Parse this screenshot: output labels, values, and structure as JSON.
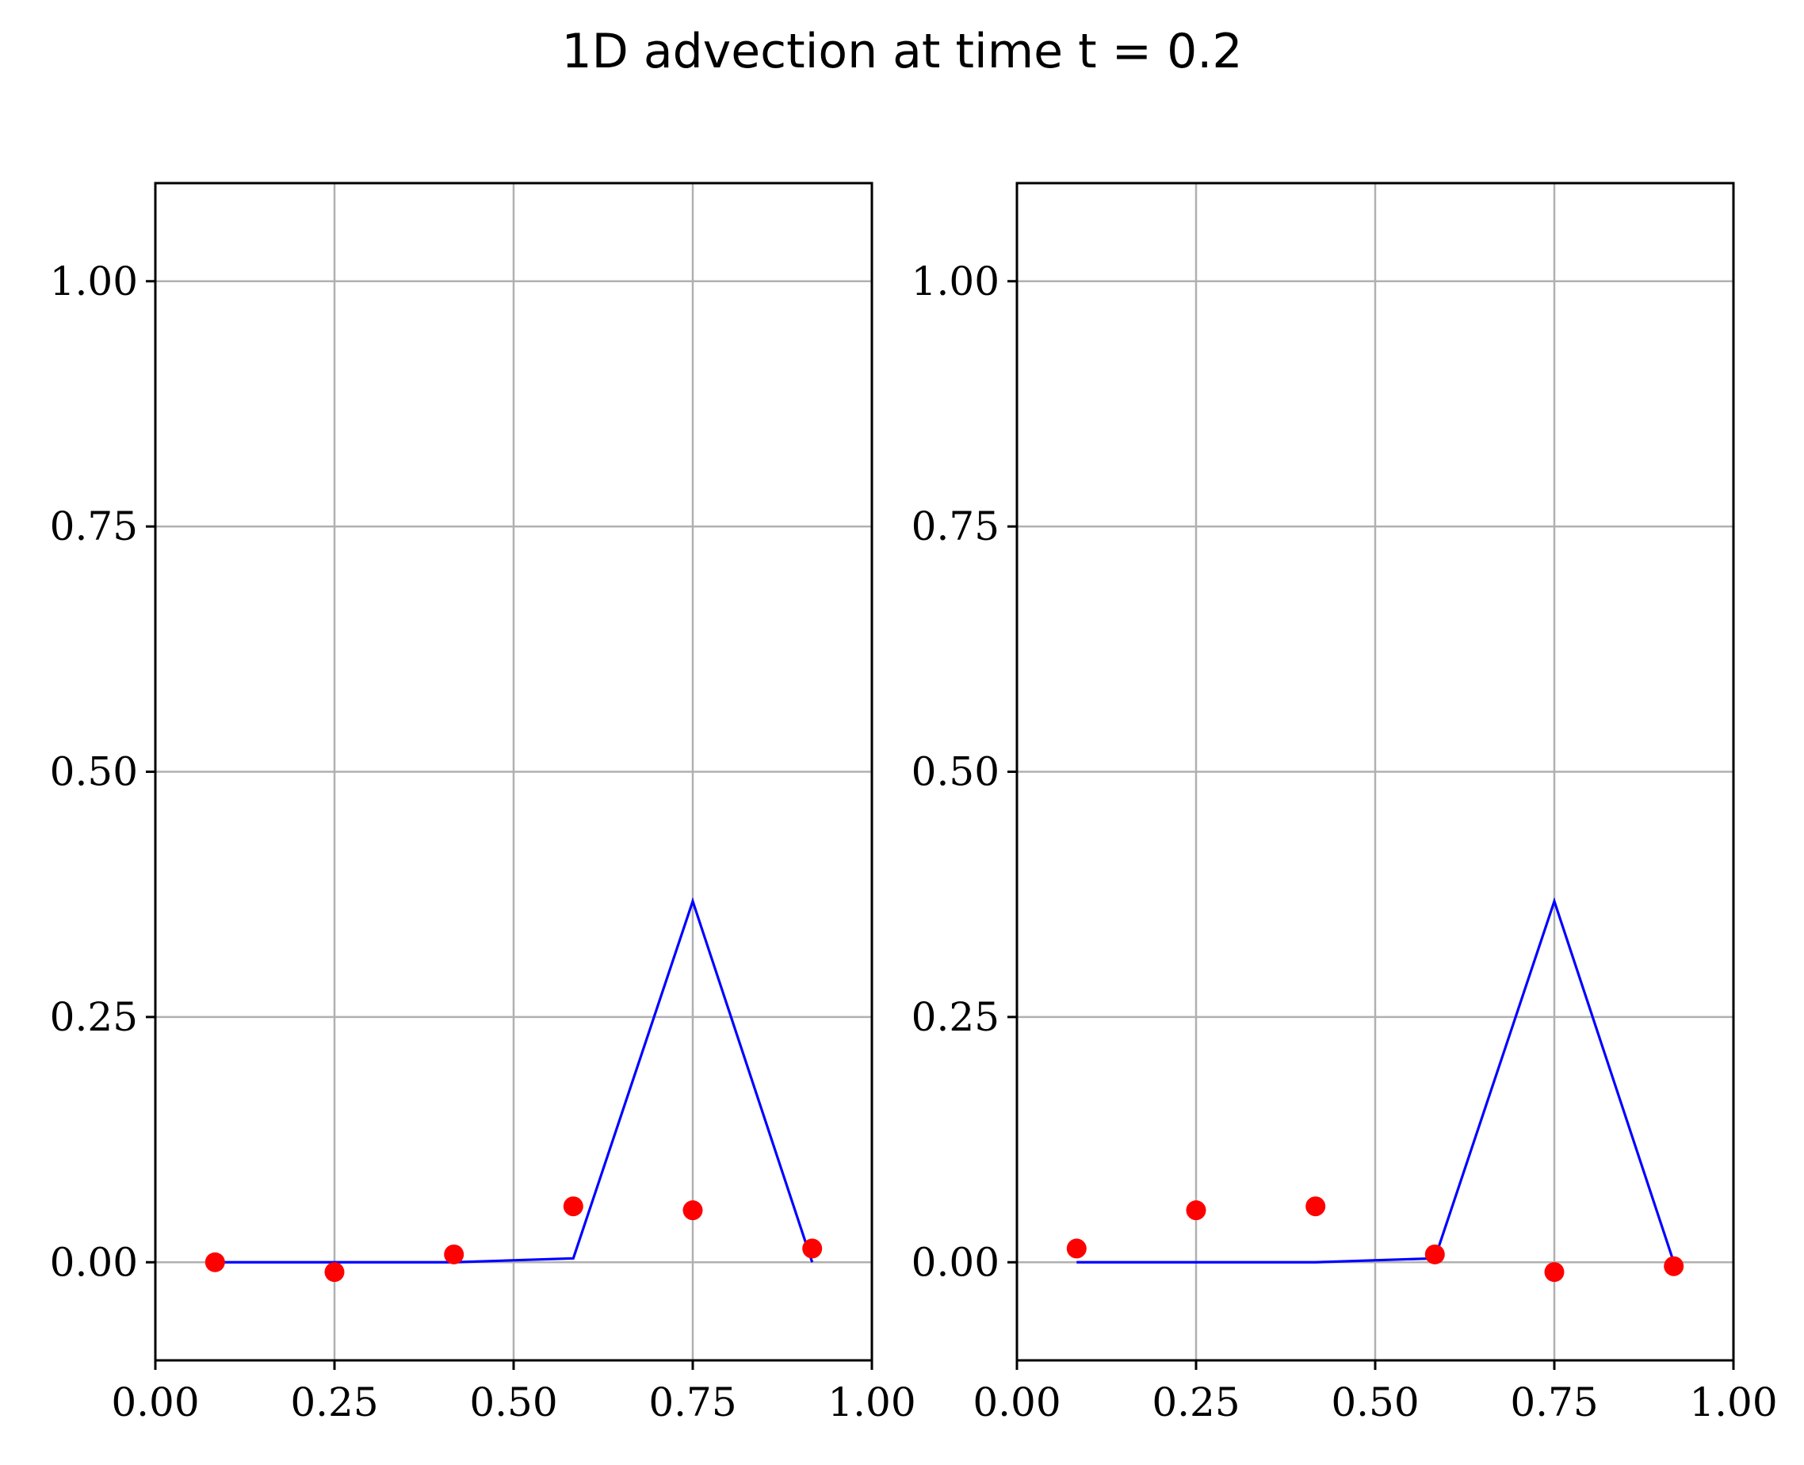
{
  "figure": {
    "title": "1D advection at time t = 0.2"
  },
  "chart_data": [
    {
      "type": "line",
      "title": "",
      "xlabel": "",
      "ylabel": "",
      "xlim": [
        0.0,
        1.0
      ],
      "ylim": [
        -0.1,
        1.1
      ],
      "xticks": [
        "0.00",
        "0.25",
        "0.50",
        "0.75",
        "1.00"
      ],
      "yticks": [
        "0.00",
        "0.25",
        "0.50",
        "0.75",
        "1.00"
      ],
      "grid": true,
      "series": [
        {
          "kind": "line",
          "color": "#0000ff",
          "x": [
            0.0833,
            0.25,
            0.4167,
            0.5833,
            0.75,
            0.9167
          ],
          "y": [
            0.0,
            0.0,
            0.0,
            0.004,
            0.368,
            0.0
          ]
        },
        {
          "kind": "scatter",
          "color": "#ff0000",
          "x": [
            0.0833,
            0.25,
            0.4167,
            0.5833,
            0.75,
            0.9167
          ],
          "y": [
            0.0,
            -0.01,
            0.008,
            0.057,
            0.053,
            0.014
          ]
        }
      ]
    },
    {
      "type": "line",
      "title": "",
      "xlabel": "",
      "ylabel": "",
      "xlim": [
        0.0,
        1.0
      ],
      "ylim": [
        -0.1,
        1.1
      ],
      "xticks": [
        "0.00",
        "0.25",
        "0.50",
        "0.75",
        "1.00"
      ],
      "yticks": [
        "0.00",
        "0.25",
        "0.50",
        "0.75",
        "1.00"
      ],
      "grid": true,
      "series": [
        {
          "kind": "line",
          "color": "#0000ff",
          "x": [
            0.0833,
            0.25,
            0.4167,
            0.5833,
            0.75,
            0.9167
          ],
          "y": [
            0.0,
            0.0,
            0.0,
            0.004,
            0.368,
            0.0
          ]
        },
        {
          "kind": "scatter",
          "color": "#ff0000",
          "x": [
            0.0833,
            0.25,
            0.4167,
            0.5833,
            0.75,
            0.9167
          ],
          "y": [
            0.014,
            0.053,
            0.057,
            0.008,
            -0.01,
            -0.004
          ]
        }
      ]
    }
  ]
}
